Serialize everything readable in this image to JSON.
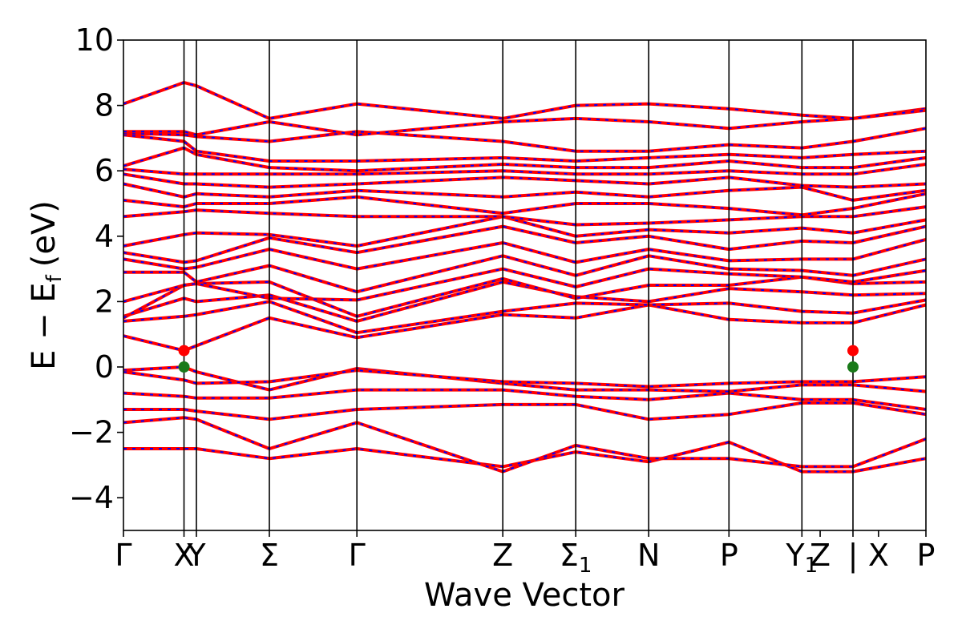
{
  "chart_data": {
    "type": "line",
    "xlabel": "Wave Vector",
    "ylabel": "E − Ef (eV)",
    "ylabel_parts": {
      "main": "E − E",
      "sub": "f",
      "unit": "(eV)"
    },
    "ylim": [
      -5,
      10
    ],
    "xlim": [
      0,
      11
    ],
    "yticks": [
      -4,
      -2,
      0,
      2,
      4,
      6,
      8,
      10
    ],
    "ytick_labels": [
      "−4",
      "−2",
      "0",
      "2",
      "4",
      "6",
      "8",
      "10"
    ],
    "kpoints": [
      {
        "label": "Γ",
        "sub": "",
        "x": 0
      },
      {
        "label": "X",
        "sub": "",
        "x": 0.83
      },
      {
        "label": "Y",
        "sub": "",
        "x": 1.0
      },
      {
        "label": "Σ",
        "sub": "",
        "x": 2.0
      },
      {
        "label": "Γ",
        "sub": "",
        "x": 3.2
      },
      {
        "label": "Z",
        "sub": "",
        "x": 5.2
      },
      {
        "label": "Σ",
        "sub": "1",
        "x": 6.2
      },
      {
        "label": "N",
        "sub": "",
        "x": 7.2
      },
      {
        "label": "P",
        "sub": "",
        "x": 8.3
      },
      {
        "label": "Y",
        "sub": "1",
        "x": 9.3
      },
      {
        "label": "Z",
        "sub": "",
        "x": 9.55
      },
      {
        "label": "|",
        "sub": "",
        "x": 10.0
      },
      {
        "label": "X",
        "sub": "",
        "x": 10.35
      },
      {
        "label": "P",
        "sub": "",
        "x": 11.0
      }
    ],
    "vlines": [
      0.83,
      1.0,
      2.0,
      3.2,
      5.2,
      6.2,
      7.2,
      8.3,
      9.3,
      10.0
    ],
    "series_colors": {
      "primary": "#ff0000",
      "secondary": "#0000ff"
    },
    "bands": [
      {
        "x": [
          0,
          0.83,
          1.0,
          2.0,
          3.2,
          5.2,
          6.2,
          7.2,
          8.3,
          9.3,
          10.0,
          11.0
        ],
        "y": [
          -2.5,
          -2.5,
          -2.5,
          -2.8,
          -2.5,
          -3.05,
          -2.6,
          -2.9,
          -2.3,
          -3.2,
          -3.2,
          -2.8
        ]
      },
      {
        "x": [
          0,
          0.83,
          1.0,
          2.0,
          3.2,
          5.2,
          6.2,
          7.2,
          8.3,
          9.3,
          10.0,
          11.0
        ],
        "y": [
          -1.7,
          -1.55,
          -1.6,
          -2.5,
          -1.7,
          -3.2,
          -2.4,
          -2.8,
          -2.8,
          -3.05,
          -3.05,
          -2.2
        ]
      },
      {
        "x": [
          0,
          0.83,
          1.0,
          2.0,
          3.2,
          5.2,
          6.2,
          7.2,
          8.3,
          9.3,
          10.0,
          11.0
        ],
        "y": [
          -1.3,
          -1.3,
          -1.35,
          -1.6,
          -1.3,
          -1.15,
          -1.15,
          -1.6,
          -1.45,
          -1.1,
          -1.1,
          -1.45
        ]
      },
      {
        "x": [
          0,
          0.83,
          1.0,
          2.0,
          3.2,
          5.2,
          6.2,
          7.2,
          8.3,
          9.3,
          10.0,
          11.0
        ],
        "y": [
          -0.8,
          -0.9,
          -0.95,
          -0.95,
          -0.7,
          -0.7,
          -0.9,
          -1.0,
          -0.8,
          -1.0,
          -1.0,
          -1.3
        ]
      },
      {
        "x": [
          0,
          0.83,
          1.0,
          2.0,
          3.2,
          5.2,
          6.2,
          7.2,
          8.3,
          9.3,
          10.0,
          11.0
        ],
        "y": [
          -0.1,
          0.0,
          -0.15,
          -0.7,
          -0.05,
          -0.5,
          -0.7,
          -0.7,
          -0.75,
          -0.55,
          -0.55,
          -0.75
        ]
      },
      {
        "x": [
          0,
          0.83,
          1.0,
          2.0,
          3.2,
          5.2,
          6.2,
          7.2,
          8.3,
          9.3,
          10.0,
          11.0
        ],
        "y": [
          -0.15,
          -0.4,
          -0.5,
          -0.45,
          -0.1,
          -0.45,
          -0.5,
          -0.6,
          -0.5,
          -0.45,
          -0.45,
          -0.3
        ]
      },
      {
        "x": [
          0,
          0.83,
          1.0,
          2.0,
          3.2,
          5.2,
          6.2,
          7.2,
          8.3,
          9.3,
          10.0,
          11.0
        ],
        "y": [
          0.95,
          0.5,
          0.65,
          1.5,
          0.9,
          1.6,
          1.5,
          1.9,
          1.45,
          1.35,
          1.35,
          1.9
        ]
      },
      {
        "x": [
          0,
          0.83,
          1.0,
          2.0,
          3.2,
          5.2,
          6.2,
          7.2,
          8.3,
          9.3,
          10.0,
          11.0
        ],
        "y": [
          1.4,
          1.55,
          1.6,
          2.0,
          1.05,
          1.7,
          1.95,
          1.9,
          1.95,
          1.7,
          1.65,
          2.05
        ]
      },
      {
        "x": [
          0,
          0.83,
          1.0,
          2.0,
          3.2,
          5.2,
          6.2,
          7.2,
          8.3,
          9.3,
          10.0,
          11.0
        ],
        "y": [
          1.55,
          2.1,
          2.0,
          2.2,
          1.4,
          2.6,
          2.15,
          2.0,
          2.4,
          2.3,
          2.2,
          2.25
        ]
      },
      {
        "x": [
          0,
          0.83,
          1.0,
          2.0,
          3.2,
          5.2,
          6.2,
          7.2,
          8.3,
          9.3,
          10.0,
          11.0
        ],
        "y": [
          1.5,
          2.5,
          2.55,
          2.6,
          1.55,
          2.7,
          2.1,
          2.5,
          2.5,
          2.75,
          2.55,
          2.6
        ]
      },
      {
        "x": [
          0,
          0.83,
          1.0,
          2.0,
          3.2,
          5.2,
          6.2,
          7.2,
          8.3,
          9.3,
          10.0,
          11.0
        ],
        "y": [
          2.0,
          2.5,
          2.55,
          2.1,
          2.05,
          3.0,
          2.45,
          3.0,
          2.85,
          2.75,
          2.6,
          2.95
        ]
      },
      {
        "x": [
          0,
          0.83,
          1.0,
          2.0,
          3.2,
          5.2,
          6.2,
          7.2,
          8.3,
          9.3,
          10.0,
          11.0
        ],
        "y": [
          2.9,
          2.9,
          2.6,
          3.1,
          2.3,
          3.4,
          2.8,
          3.4,
          3.0,
          2.95,
          2.8,
          3.3
        ]
      },
      {
        "x": [
          0,
          0.83,
          1.0,
          2.0,
          3.2,
          5.2,
          6.2,
          7.2,
          8.3,
          9.3,
          10.0,
          11.0
        ],
        "y": [
          3.3,
          3.0,
          3.05,
          3.6,
          3.0,
          3.8,
          3.2,
          3.6,
          3.25,
          3.3,
          3.3,
          3.9
        ]
      },
      {
        "x": [
          0,
          0.83,
          1.0,
          2.0,
          3.2,
          5.2,
          6.2,
          7.2,
          8.3,
          9.3,
          10.0,
          11.0
        ],
        "y": [
          3.5,
          3.2,
          3.25,
          3.95,
          3.5,
          4.3,
          3.8,
          4.0,
          3.6,
          3.85,
          3.8,
          4.3
        ]
      },
      {
        "x": [
          0,
          0.83,
          1.0,
          2.0,
          3.2,
          5.2,
          6.2,
          7.2,
          8.3,
          9.3,
          10.0,
          11.0
        ],
        "y": [
          3.7,
          4.05,
          4.1,
          4.05,
          3.7,
          4.6,
          4.0,
          4.2,
          4.1,
          4.25,
          4.1,
          4.5
        ]
      },
      {
        "x": [
          0,
          0.83,
          1.0,
          2.0,
          3.2,
          5.2,
          6.2,
          7.2,
          8.3,
          9.3,
          10.0,
          11.0
        ],
        "y": [
          4.6,
          4.75,
          4.8,
          4.7,
          4.6,
          4.6,
          4.35,
          4.4,
          4.5,
          4.6,
          4.6,
          4.9
        ]
      },
      {
        "x": [
          0,
          0.83,
          1.0,
          2.0,
          3.2,
          5.2,
          6.2,
          7.2,
          8.3,
          9.3,
          10.0,
          11.0
        ],
        "y": [
          5.1,
          4.9,
          5.0,
          5.0,
          5.2,
          4.7,
          5.0,
          5.0,
          4.85,
          4.65,
          4.85,
          5.3
        ]
      },
      {
        "x": [
          0,
          0.83,
          1.0,
          2.0,
          3.2,
          5.2,
          6.2,
          7.2,
          8.3,
          9.3,
          10.0,
          11.0
        ],
        "y": [
          5.6,
          5.2,
          5.3,
          5.2,
          5.4,
          5.2,
          5.35,
          5.2,
          5.4,
          5.5,
          5.1,
          5.4
        ]
      },
      {
        "x": [
          0,
          0.83,
          1.0,
          2.0,
          3.2,
          5.2,
          6.2,
          7.2,
          8.3,
          9.3,
          10.0,
          11.0
        ],
        "y": [
          5.9,
          5.6,
          5.6,
          5.5,
          5.6,
          5.8,
          5.7,
          5.6,
          5.8,
          5.55,
          5.5,
          5.6
        ]
      },
      {
        "x": [
          0,
          0.83,
          1.0,
          2.0,
          3.2,
          5.2,
          6.2,
          7.2,
          8.3,
          9.3,
          10.0,
          11.0
        ],
        "y": [
          6.05,
          5.9,
          5.9,
          5.9,
          5.9,
          6.0,
          5.9,
          5.9,
          6.0,
          5.9,
          5.9,
          6.2
        ]
      },
      {
        "x": [
          0,
          0.83,
          1.0,
          2.0,
          3.2,
          5.2,
          6.2,
          7.2,
          8.3,
          9.3,
          10.0,
          11.0
        ],
        "y": [
          6.15,
          6.7,
          6.5,
          6.1,
          6.0,
          6.2,
          6.1,
          6.1,
          6.3,
          6.1,
          6.1,
          6.4
        ]
      },
      {
        "x": [
          0,
          0.83,
          1.0,
          2.0,
          3.2,
          5.2,
          6.2,
          7.2,
          8.3,
          9.3,
          10.0,
          11.0
        ],
        "y": [
          7.1,
          6.9,
          6.6,
          6.3,
          6.3,
          6.4,
          6.3,
          6.4,
          6.5,
          6.4,
          6.5,
          6.6
        ]
      },
      {
        "x": [
          0,
          0.83,
          1.0,
          2.0,
          3.2,
          5.2,
          6.2,
          7.2,
          8.3,
          9.3,
          10.0,
          11.0
        ],
        "y": [
          7.15,
          7.1,
          7.05,
          6.9,
          7.2,
          6.9,
          6.6,
          6.6,
          6.8,
          6.7,
          6.9,
          7.3
        ]
      },
      {
        "x": [
          0,
          0.83,
          1.0,
          2.0,
          3.2,
          5.2,
          6.2,
          7.2,
          8.3,
          9.3,
          10.0,
          11.0
        ],
        "y": [
          7.2,
          7.2,
          7.1,
          7.5,
          7.1,
          7.5,
          7.6,
          7.5,
          7.3,
          7.5,
          7.6,
          7.9
        ]
      },
      {
        "x": [
          0,
          0.83,
          1.0,
          2.0,
          3.2,
          5.2,
          6.2,
          7.2,
          8.3,
          9.3,
          10.0,
          11.0
        ],
        "y": [
          8.05,
          8.7,
          8.6,
          7.6,
          8.05,
          7.6,
          8.0,
          8.05,
          7.9,
          7.7,
          7.6,
          7.85
        ]
      }
    ],
    "markers": [
      {
        "x": 0.83,
        "y": 0.5,
        "color": "#ff0000"
      },
      {
        "x": 0.83,
        "y": 0.0,
        "color": "#1a7a1a"
      },
      {
        "x": 10.0,
        "y": 0.5,
        "color": "#ff0000"
      },
      {
        "x": 10.0,
        "y": 0.0,
        "color": "#1a7a1a"
      }
    ]
  }
}
